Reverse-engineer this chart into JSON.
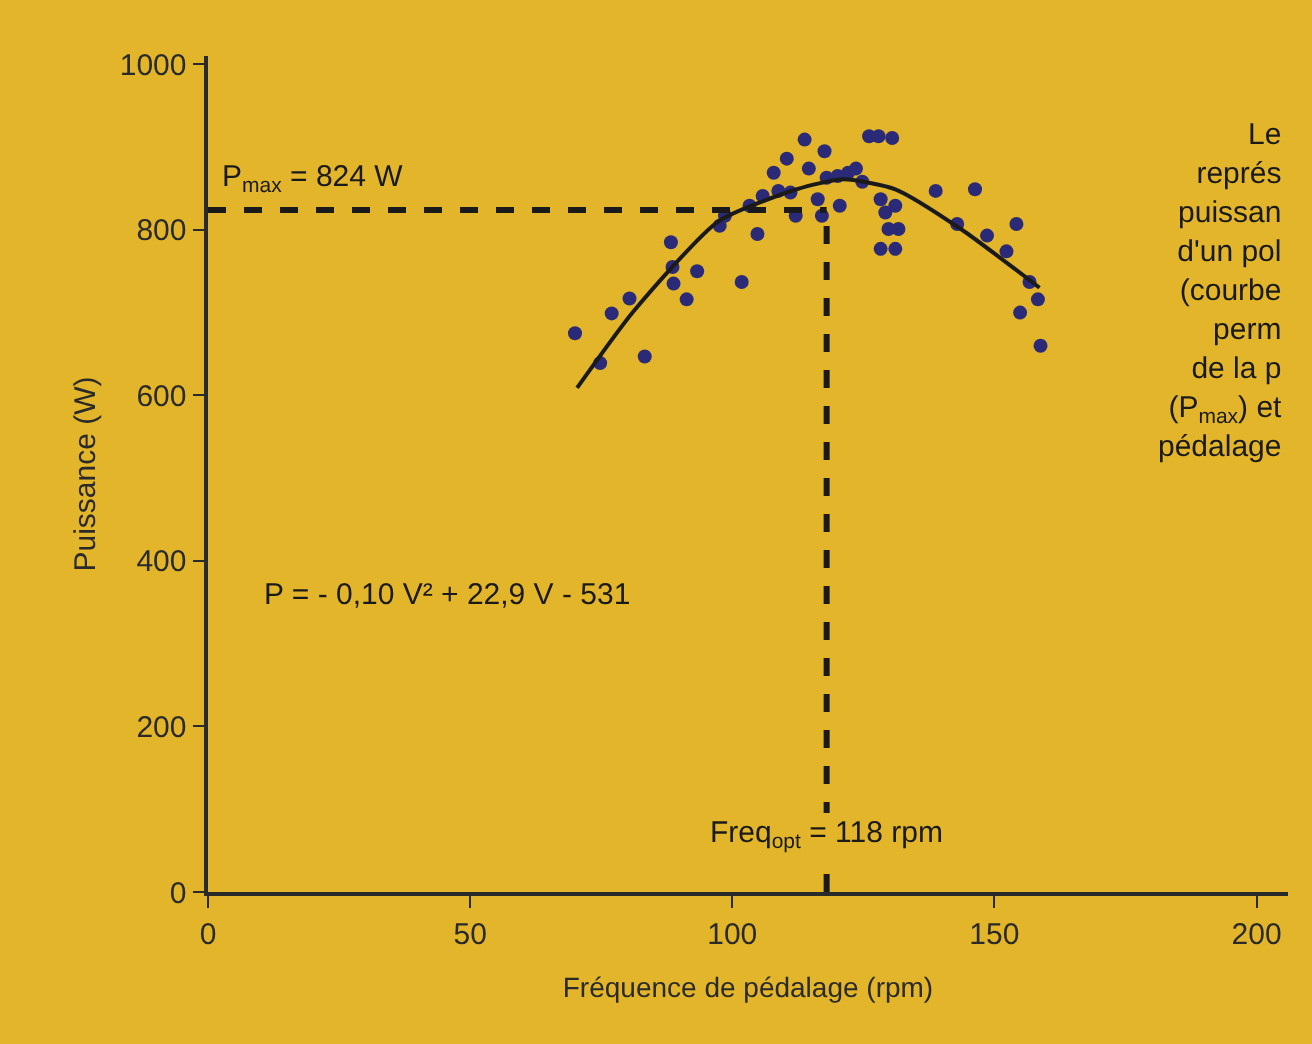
{
  "chart_data": {
    "type": "scatter",
    "xlabel": "Fréquence de pédalage (rpm)",
    "ylabel": "Puissance (W)",
    "xlim": [
      0,
      206
    ],
    "ylim": [
      0,
      1010
    ],
    "xticks": [
      0,
      50,
      100,
      150,
      200
    ],
    "yticks": [
      0,
      200,
      400,
      600,
      800,
      1000
    ],
    "grid": false,
    "marker": "circle",
    "series": [
      {
        "color": "#2b2a78",
        "x": [
          70.0,
          74.8,
          77.0,
          80.4,
          83.3,
          88.3,
          88.6,
          88.8,
          91.3,
          93.3,
          97.6,
          98.6,
          101.8,
          103.3,
          104.8,
          105.8,
          107.9,
          108.8,
          110.4,
          111.1,
          112.1,
          113.8,
          114.6,
          116.3,
          117.1,
          117.6,
          118.0,
          120.1,
          120.5,
          122.1,
          123.6,
          124.8,
          126.1,
          127.9,
          130.5,
          128.3,
          129.2,
          131.1,
          129.8,
          131.7,
          128.3,
          131.1,
          138.8,
          142.9,
          146.3,
          148.6,
          152.3,
          154.2,
          156.7,
          158.3,
          154.9,
          158.8
        ],
        "values": [
          675,
          639,
          699,
          717,
          647,
          785,
          755,
          735,
          716,
          750,
          805,
          817,
          737,
          829,
          795,
          841,
          869,
          847,
          886,
          845,
          817,
          909,
          874,
          837,
          817,
          895,
          863,
          865,
          829,
          869,
          874,
          858,
          913,
          913,
          911,
          837,
          821,
          829,
          801,
          801,
          777,
          777,
          847,
          807,
          849,
          793,
          774,
          807,
          737,
          716,
          700,
          660
        ]
      },
      {
        "type": "line",
        "color": "#1a1a1a",
        "line_style": "solid",
        "marker": "none",
        "x": [
          70.4,
          81.1,
          97.3,
          112.3,
          121.1,
          131.1,
          143.6,
          158.6
        ],
        "values": [
          609,
          701,
          810,
          849,
          861,
          849,
          801,
          730
        ]
      }
    ],
    "ref_lines": [
      {
        "axis": "y",
        "value": 824,
        "label": "P$_{max}$ = 824 W",
        "color": "#1a1a1a",
        "line_style": "dashed"
      },
      {
        "axis": "x",
        "value": 118,
        "label": "Freq$_{opt}$ = 118 rpm",
        "color": "#1a1a1a",
        "line_style": "dashed"
      }
    ],
    "annotations": [
      "P = - 0,10 V² + 22,9 V - 531",
      "Le\nreprés\npuissan\nd'un pol\n(courbe\nperm\nde la p\n(P$_{max}$) et\npédalage"
    ]
  }
}
